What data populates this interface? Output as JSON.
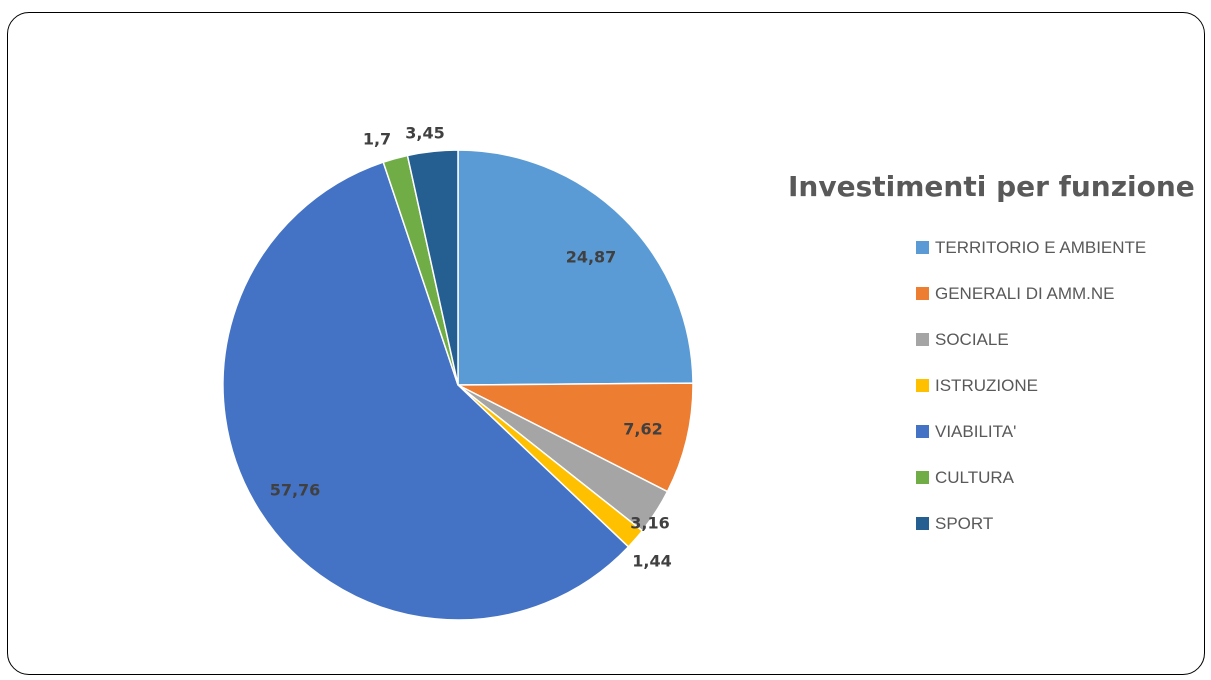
{
  "chart_data": {
    "type": "pie",
    "title": "Investimenti per funzione",
    "legend_position": "right",
    "slices": [
      {
        "label": "TERRITORIO E AMBIENTE",
        "value": 24.87,
        "display": "24,87",
        "color": "#5B9BD5"
      },
      {
        "label": "GENERALI DI AMM.NE",
        "value": 7.62,
        "display": "7,62",
        "color": "#ED7D31"
      },
      {
        "label": "SOCIALE",
        "value": 3.16,
        "display": "3,16",
        "color": "#A5A5A5"
      },
      {
        "label": "ISTRUZIONE",
        "value": 1.44,
        "display": "1,44",
        "color": "#FFC000"
      },
      {
        "label": "VIABILITA'",
        "value": 57.76,
        "display": "57,76",
        "color": "#4472C4"
      },
      {
        "label": "CULTURA",
        "value": 1.7,
        "display": "1,7",
        "color": "#70AD47"
      },
      {
        "label": "SPORT",
        "value": 3.45,
        "display": "3,45",
        "color": "#255E91"
      }
    ]
  }
}
